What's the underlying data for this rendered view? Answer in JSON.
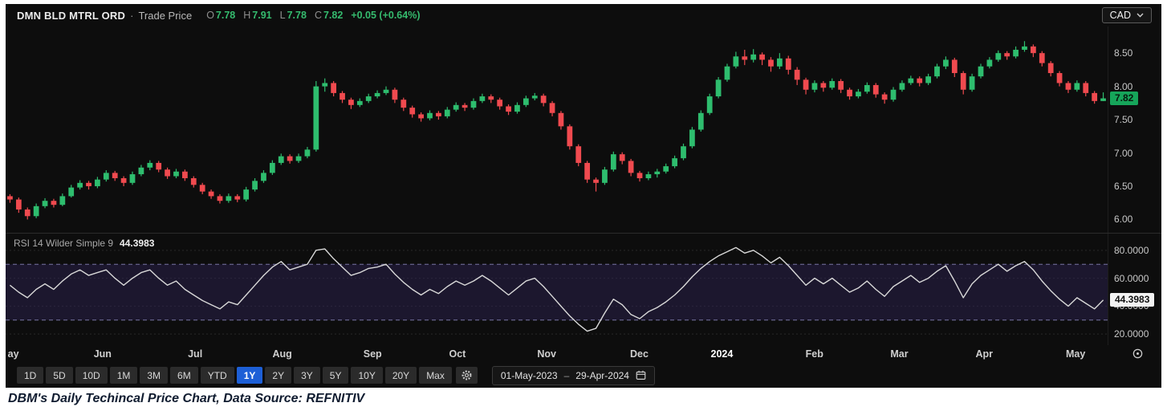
{
  "header": {
    "title": "DMN BLD MTRL ORD",
    "separator": "·",
    "series": "Trade Price",
    "ohlc": {
      "open_label": "O",
      "open": "7.78",
      "high_label": "H",
      "high": "7.91",
      "low_label": "L",
      "low": "7.78",
      "close_label": "C",
      "close": "7.82",
      "change": "+0.05 (+0.64%)"
    },
    "currency": "CAD"
  },
  "price_axis": {
    "ticks": [
      {
        "text": "8.50",
        "value": 8.5
      },
      {
        "text": "8.00",
        "value": 8.0
      },
      {
        "text": "7.50",
        "value": 7.5
      },
      {
        "text": "7.00",
        "value": 7.0
      },
      {
        "text": "6.50",
        "value": 6.5
      },
      {
        "text": "6.00",
        "value": 6.0
      }
    ],
    "badge": {
      "text": "7.82",
      "value": 7.82
    }
  },
  "rsi": {
    "label": "RSI 14 Wilder Simple 9",
    "value_text": "44.3983",
    "value": 44.3983,
    "axis_labels": [
      {
        "text": "80.0000",
        "value": 80
      },
      {
        "text": "60.0000",
        "value": 60
      },
      {
        "text": "40.0000",
        "value": 40
      },
      {
        "text": "20.0000",
        "value": 20
      }
    ],
    "bands": {
      "lower": 30,
      "upper": 70
    }
  },
  "x_axis": {
    "months": [
      {
        "label": "ay",
        "pos": 0.007
      },
      {
        "label": "Jun",
        "pos": 0.088
      },
      {
        "label": "Jul",
        "pos": 0.172
      },
      {
        "label": "Aug",
        "pos": 0.251
      },
      {
        "label": "Sep",
        "pos": 0.333
      },
      {
        "label": "Oct",
        "pos": 0.41
      },
      {
        "label": "Nov",
        "pos": 0.491
      },
      {
        "label": "Dec",
        "pos": 0.575
      },
      {
        "label": "2024",
        "pos": 0.65,
        "emph": true
      },
      {
        "label": "Feb",
        "pos": 0.734
      },
      {
        "label": "Mar",
        "pos": 0.811
      },
      {
        "label": "Apr",
        "pos": 0.888
      },
      {
        "label": "May",
        "pos": 0.971
      }
    ]
  },
  "toolbar": {
    "ranges": [
      "1D",
      "5D",
      "10D",
      "1M",
      "3M",
      "6M",
      "YTD",
      "1Y",
      "2Y",
      "3Y",
      "5Y",
      "10Y",
      "20Y",
      "Max"
    ],
    "selected": "1Y",
    "date_from": "01-May-2023",
    "date_separator": "–",
    "date_to": "29-Apr-2024"
  },
  "caption": "DBM's Daily Techincal Price Chart, Data Source: REFNITIV",
  "colors": {
    "chart_bg": "#0d0d0d",
    "up": "#2ebd6e",
    "down": "#f04a4f",
    "accent_green": "#35bb6e",
    "axis_text": "#c8c8c8",
    "badge_price_bg": "#16a55a",
    "selected_range_bg": "#1d5fd6",
    "rsi_line": "#d8d8d8",
    "rsi_band_fill": "#2c2250",
    "rsi_band_line": "#8a86b8"
  },
  "chart_data": [
    {
      "type": "candlestick",
      "title": "DMN BLD MTRL ORD · Trade Price",
      "currency": "CAD",
      "ylim": [
        5.8,
        8.9
      ],
      "x_tick_labels": [
        "May",
        "Jun",
        "Jul",
        "Aug",
        "Sep",
        "Oct",
        "Nov",
        "Dec",
        "2024",
        "Feb",
        "Mar",
        "Apr",
        "May"
      ],
      "last": {
        "open": 7.78,
        "high": 7.91,
        "low": 7.78,
        "close": 7.82,
        "change": 0.05,
        "change_pct": 0.64
      },
      "ohlc": [
        [
          6.35,
          6.38,
          6.25,
          6.3
        ],
        [
          6.3,
          6.33,
          6.1,
          6.15
        ],
        [
          6.15,
          6.18,
          6.0,
          6.05
        ],
        [
          6.05,
          6.24,
          6.02,
          6.2
        ],
        [
          6.2,
          6.32,
          6.17,
          6.28
        ],
        [
          6.28,
          6.31,
          6.18,
          6.22
        ],
        [
          6.22,
          6.39,
          6.2,
          6.35
        ],
        [
          6.35,
          6.52,
          6.33,
          6.48
        ],
        [
          6.48,
          6.59,
          6.45,
          6.55
        ],
        [
          6.55,
          6.58,
          6.45,
          6.5
        ],
        [
          6.5,
          6.64,
          6.47,
          6.6
        ],
        [
          6.6,
          6.74,
          6.57,
          6.7
        ],
        [
          6.7,
          6.73,
          6.58,
          6.62
        ],
        [
          6.62,
          6.65,
          6.5,
          6.55
        ],
        [
          6.55,
          6.72,
          6.52,
          6.68
        ],
        [
          6.68,
          6.82,
          6.65,
          6.78
        ],
        [
          6.78,
          6.89,
          6.74,
          6.85
        ],
        [
          6.85,
          6.88,
          6.71,
          6.75
        ],
        [
          6.75,
          6.78,
          6.61,
          6.65
        ],
        [
          6.65,
          6.76,
          6.62,
          6.72
        ],
        [
          6.72,
          6.75,
          6.58,
          6.62
        ],
        [
          6.62,
          6.65,
          6.48,
          6.52
        ],
        [
          6.52,
          6.55,
          6.38,
          6.42
        ],
        [
          6.42,
          6.45,
          6.31,
          6.35
        ],
        [
          6.35,
          6.38,
          6.24,
          6.28
        ],
        [
          6.28,
          6.39,
          6.25,
          6.35
        ],
        [
          6.35,
          6.38,
          6.26,
          6.3
        ],
        [
          6.3,
          6.49,
          6.27,
          6.45
        ],
        [
          6.45,
          6.62,
          6.42,
          6.58
        ],
        [
          6.58,
          6.74,
          6.55,
          6.7
        ],
        [
          6.7,
          6.89,
          6.67,
          6.85
        ],
        [
          6.85,
          6.99,
          6.82,
          6.95
        ],
        [
          6.95,
          6.98,
          6.84,
          6.88
        ],
        [
          6.88,
          6.99,
          6.85,
          6.95
        ],
        [
          6.95,
          7.09,
          6.92,
          7.05
        ],
        [
          7.05,
          8.08,
          7.02,
          8.0
        ],
        [
          8.0,
          8.12,
          7.92,
          8.05
        ],
        [
          8.05,
          8.08,
          7.85,
          7.9
        ],
        [
          7.9,
          7.93,
          7.75,
          7.8
        ],
        [
          7.8,
          7.83,
          7.66,
          7.72
        ],
        [
          7.72,
          7.82,
          7.69,
          7.78
        ],
        [
          7.78,
          7.89,
          7.75,
          7.85
        ],
        [
          7.85,
          7.94,
          7.82,
          7.9
        ],
        [
          7.9,
          8.0,
          7.87,
          7.95
        ],
        [
          7.95,
          7.98,
          7.75,
          7.8
        ],
        [
          7.8,
          7.83,
          7.63,
          7.68
        ],
        [
          7.68,
          7.71,
          7.53,
          7.58
        ],
        [
          7.58,
          7.61,
          7.47,
          7.52
        ],
        [
          7.52,
          7.64,
          7.49,
          7.6
        ],
        [
          7.6,
          7.63,
          7.5,
          7.55
        ],
        [
          7.55,
          7.69,
          7.52,
          7.65
        ],
        [
          7.65,
          7.76,
          7.62,
          7.72
        ],
        [
          7.72,
          7.75,
          7.63,
          7.68
        ],
        [
          7.68,
          7.82,
          7.65,
          7.78
        ],
        [
          7.78,
          7.89,
          7.75,
          7.85
        ],
        [
          7.85,
          7.88,
          7.75,
          7.8
        ],
        [
          7.8,
          7.83,
          7.65,
          7.7
        ],
        [
          7.7,
          7.73,
          7.57,
          7.62
        ],
        [
          7.62,
          7.76,
          7.59,
          7.72
        ],
        [
          7.72,
          7.86,
          7.69,
          7.82
        ],
        [
          7.82,
          7.9,
          7.79,
          7.86
        ],
        [
          7.86,
          7.89,
          7.7,
          7.75
        ],
        [
          7.75,
          7.78,
          7.55,
          7.6
        ],
        [
          7.6,
          7.63,
          7.35,
          7.4
        ],
        [
          7.4,
          7.43,
          7.05,
          7.1
        ],
        [
          7.1,
          7.13,
          6.8,
          6.85
        ],
        [
          6.85,
          6.88,
          6.55,
          6.6
        ],
        [
          6.6,
          6.63,
          6.42,
          6.55
        ],
        [
          6.55,
          6.79,
          6.52,
          6.75
        ],
        [
          6.75,
          7.02,
          6.72,
          6.98
        ],
        [
          6.98,
          7.01,
          6.83,
          6.88
        ],
        [
          6.88,
          6.91,
          6.65,
          6.7
        ],
        [
          6.7,
          6.73,
          6.57,
          6.62
        ],
        [
          6.62,
          6.72,
          6.59,
          6.68
        ],
        [
          6.68,
          6.76,
          6.63,
          6.72
        ],
        [
          6.72,
          6.84,
          6.69,
          6.8
        ],
        [
          6.8,
          6.96,
          6.77,
          6.92
        ],
        [
          6.92,
          7.14,
          6.89,
          7.1
        ],
        [
          7.1,
          7.39,
          7.07,
          7.35
        ],
        [
          7.35,
          7.64,
          7.32,
          7.6
        ],
        [
          7.6,
          7.89,
          7.57,
          7.85
        ],
        [
          7.85,
          8.14,
          7.82,
          8.1
        ],
        [
          8.1,
          8.34,
          8.07,
          8.3
        ],
        [
          8.3,
          8.52,
          8.27,
          8.45
        ],
        [
          8.45,
          8.55,
          8.32,
          8.4
        ],
        [
          8.4,
          8.56,
          8.36,
          8.48
        ],
        [
          8.48,
          8.51,
          8.32,
          8.4
        ],
        [
          8.4,
          8.44,
          8.22,
          8.3
        ],
        [
          8.3,
          8.5,
          8.26,
          8.42
        ],
        [
          8.42,
          8.46,
          8.18,
          8.25
        ],
        [
          8.25,
          8.29,
          8.02,
          8.1
        ],
        [
          8.1,
          8.13,
          7.88,
          7.95
        ],
        [
          7.95,
          8.09,
          7.91,
          8.05
        ],
        [
          8.05,
          8.08,
          7.92,
          7.98
        ],
        [
          7.98,
          8.12,
          7.95,
          8.08
        ],
        [
          8.08,
          8.11,
          7.9,
          7.95
        ],
        [
          7.95,
          7.98,
          7.8,
          7.85
        ],
        [
          7.85,
          7.96,
          7.82,
          7.92
        ],
        [
          7.92,
          8.06,
          7.89,
          8.02
        ],
        [
          8.02,
          8.05,
          7.83,
          7.88
        ],
        [
          7.88,
          7.91,
          7.74,
          7.8
        ],
        [
          7.8,
          7.99,
          7.77,
          7.95
        ],
        [
          7.95,
          8.09,
          7.92,
          8.05
        ],
        [
          8.05,
          8.16,
          8.02,
          8.12
        ],
        [
          8.12,
          8.15,
          8.0,
          8.05
        ],
        [
          8.05,
          8.19,
          8.02,
          8.15
        ],
        [
          8.15,
          8.34,
          8.12,
          8.3
        ],
        [
          8.3,
          8.45,
          8.26,
          8.4
        ],
        [
          8.4,
          8.43,
          8.14,
          8.2
        ],
        [
          8.2,
          8.23,
          7.88,
          7.95
        ],
        [
          7.95,
          8.19,
          7.92,
          8.15
        ],
        [
          8.15,
          8.34,
          8.12,
          8.3
        ],
        [
          8.3,
          8.44,
          8.27,
          8.4
        ],
        [
          8.4,
          8.54,
          8.37,
          8.5
        ],
        [
          8.5,
          8.53,
          8.4,
          8.45
        ],
        [
          8.45,
          8.6,
          8.42,
          8.55
        ],
        [
          8.55,
          8.68,
          8.52,
          8.6
        ],
        [
          8.6,
          8.63,
          8.44,
          8.5
        ],
        [
          8.5,
          8.53,
          8.3,
          8.35
        ],
        [
          8.35,
          8.38,
          8.15,
          8.2
        ],
        [
          8.2,
          8.23,
          8.0,
          8.05
        ],
        [
          8.05,
          8.08,
          7.9,
          7.95
        ],
        [
          7.95,
          8.09,
          7.92,
          8.05
        ],
        [
          8.05,
          8.08,
          7.85,
          7.9
        ],
        [
          7.9,
          7.93,
          7.74,
          7.78
        ],
        [
          7.78,
          7.91,
          7.78,
          7.82
        ]
      ]
    },
    {
      "type": "line",
      "title": "RSI 14 Wilder Simple 9",
      "ylim": [
        12,
        92
      ],
      "bands": [
        30,
        70
      ],
      "current": 44.3983,
      "values": [
        55,
        50,
        46,
        52,
        56,
        52,
        58,
        63,
        66,
        62,
        64,
        66,
        60,
        55,
        60,
        64,
        66,
        60,
        55,
        58,
        52,
        48,
        44,
        41,
        38,
        43,
        41,
        48,
        55,
        62,
        68,
        72,
        66,
        68,
        70,
        80,
        81,
        74,
        68,
        62,
        64,
        67,
        68,
        70,
        63,
        57,
        52,
        48,
        52,
        49,
        54,
        58,
        55,
        58,
        62,
        58,
        53,
        48,
        53,
        58,
        60,
        54,
        47,
        40,
        33,
        27,
        22,
        24,
        35,
        45,
        41,
        34,
        31,
        36,
        39,
        43,
        48,
        54,
        61,
        67,
        72,
        76,
        79,
        82,
        78,
        80,
        76,
        71,
        75,
        69,
        62,
        55,
        60,
        56,
        60,
        55,
        50,
        53,
        58,
        52,
        47,
        54,
        58,
        62,
        57,
        60,
        65,
        69,
        58,
        46,
        56,
        62,
        66,
        70,
        65,
        69,
        72,
        66,
        58,
        51,
        45,
        40,
        46,
        42,
        38,
        44.3983
      ]
    }
  ]
}
